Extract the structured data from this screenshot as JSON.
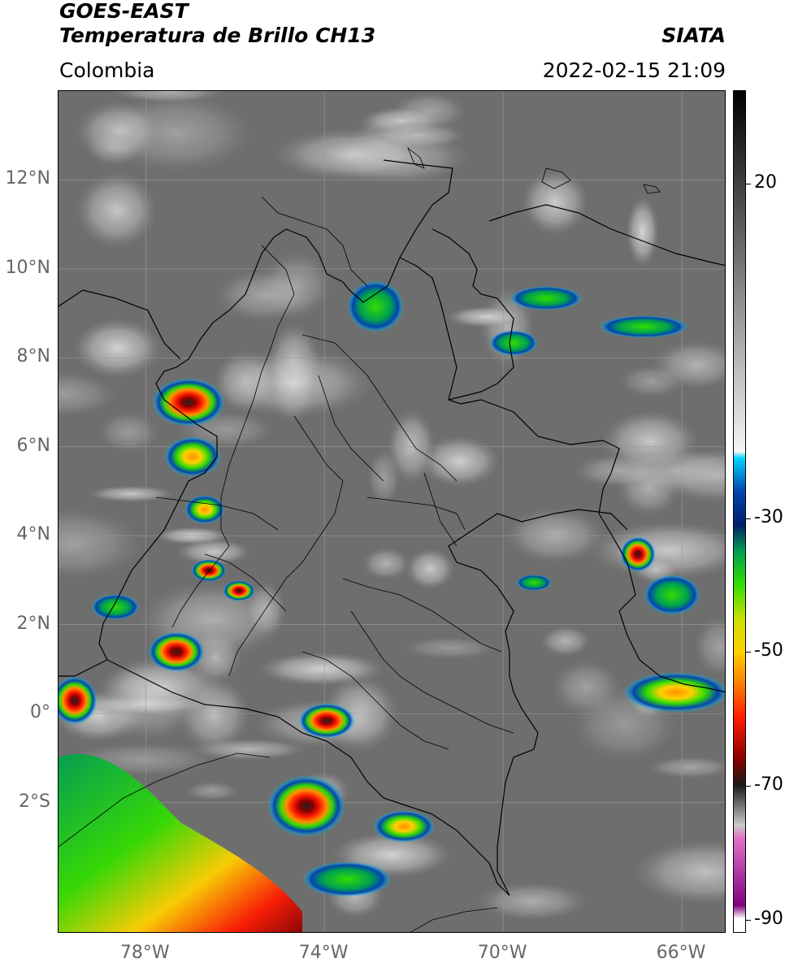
{
  "header": {
    "title_line1": "GOES-EAST",
    "title_line2": "Temperatura de Brillo CH13",
    "region": "Colombia",
    "brand": "SIATA",
    "timestamp": "2022-02-15 21:09"
  },
  "map": {
    "lat_labels": [
      {
        "label": "12°N",
        "lat": 12
      },
      {
        "label": "10°N",
        "lat": 10
      },
      {
        "label": "8°N",
        "lat": 8
      },
      {
        "label": "6°N",
        "lat": 6
      },
      {
        "label": "4°N",
        "lat": 4
      },
      {
        "label": "2°N",
        "lat": 2
      },
      {
        "label": "0°",
        "lat": 0
      },
      {
        "label": "2°S",
        "lat": -2
      }
    ],
    "lon_labels": [
      {
        "label": "78°W",
        "lon": -78
      },
      {
        "label": "74°W",
        "lon": -74
      },
      {
        "label": "70°W",
        "lon": -70
      },
      {
        "label": "66°W",
        "lon": -66
      }
    ],
    "extent": {
      "lon_min": -79.95,
      "lon_max": -65.0,
      "lat_min": -4.95,
      "lat_max": 14.0
    }
  },
  "colorbar": {
    "ticks": [
      {
        "label": "20",
        "value": 20
      },
      {
        "label": "-30",
        "value": -30
      },
      {
        "label": "-50",
        "value": -50
      },
      {
        "label": "-70",
        "value": -70
      },
      {
        "label": "-90",
        "value": -90
      }
    ],
    "range": [
      -92,
      34
    ],
    "stops": [
      {
        "value": 34,
        "color": "#000000"
      },
      {
        "value": 0,
        "color": "#9a9a9a"
      },
      {
        "value": -20,
        "color": "#f5f5f5"
      },
      {
        "value": -21,
        "color": "#00d5ff"
      },
      {
        "value": -26,
        "color": "#0044b0"
      },
      {
        "value": -31,
        "color": "#00206a"
      },
      {
        "value": -35,
        "color": "#00a050"
      },
      {
        "value": -40,
        "color": "#33dd00"
      },
      {
        "value": -45,
        "color": "#c8e000"
      },
      {
        "value": -50,
        "color": "#ffd000"
      },
      {
        "value": -55,
        "color": "#ff7a00"
      },
      {
        "value": -60,
        "color": "#ff1a00"
      },
      {
        "value": -66,
        "color": "#8a0000"
      },
      {
        "value": -70,
        "color": "#1a1a1a"
      },
      {
        "value": -76,
        "color": "#c9c9c9"
      },
      {
        "value": -78,
        "color": "#e070c8"
      },
      {
        "value": -88,
        "color": "#800080"
      },
      {
        "value": -90,
        "color": "#ffffff"
      }
    ]
  }
}
